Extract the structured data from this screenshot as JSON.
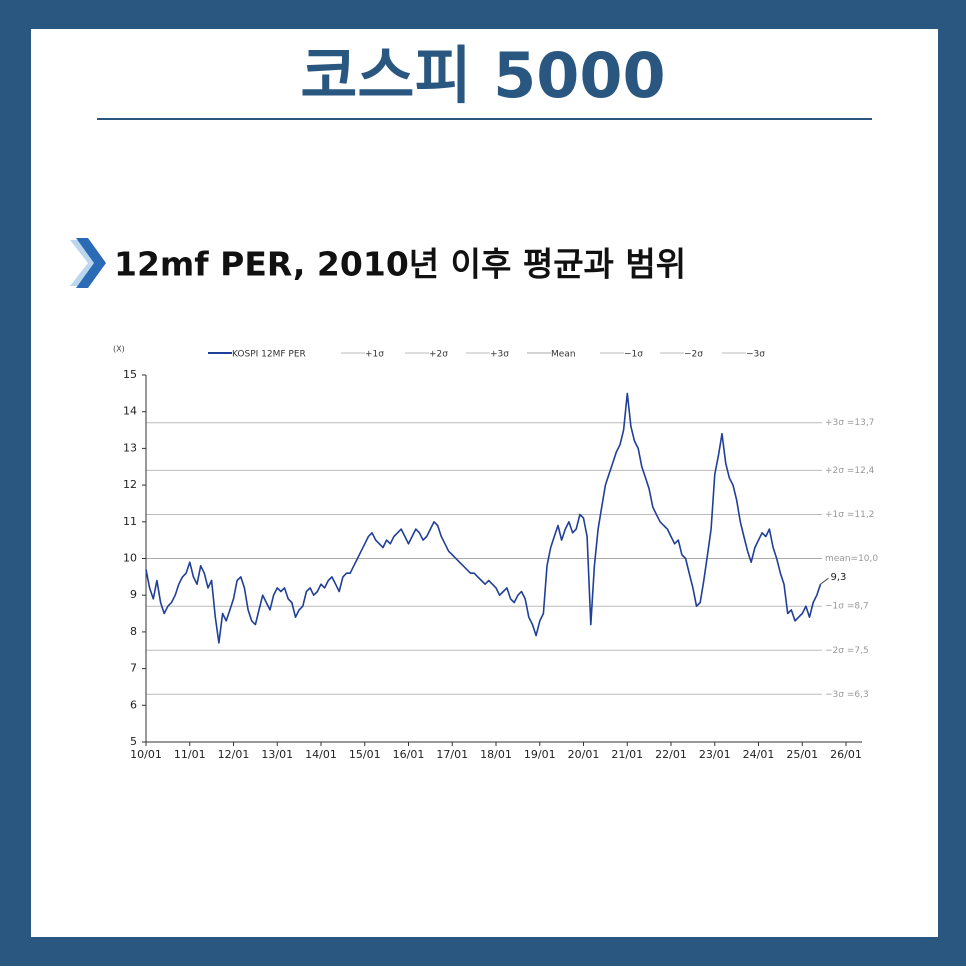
{
  "page_title": "코스피 5000",
  "chart_data": {
    "type": "line",
    "title": "12mf PER, 2010년 이후 평균과 범위",
    "y_label": "(X)",
    "x": [
      "2010-01",
      "2010-02",
      "2010-03",
      "2010-04",
      "2010-05",
      "2010-06",
      "2010-07",
      "2010-08",
      "2010-09",
      "2010-10",
      "2010-11",
      "2010-12",
      "2011-01",
      "2011-02",
      "2011-03",
      "2011-04",
      "2011-05",
      "2011-06",
      "2011-07",
      "2011-08",
      "2011-09",
      "2011-10",
      "2011-11",
      "2011-12",
      "2012-01",
      "2012-02",
      "2012-03",
      "2012-04",
      "2012-05",
      "2012-06",
      "2012-07",
      "2012-08",
      "2012-09",
      "2012-10",
      "2012-11",
      "2012-12",
      "2013-01",
      "2013-02",
      "2013-03",
      "2013-04",
      "2013-05",
      "2013-06",
      "2013-07",
      "2013-08",
      "2013-09",
      "2013-10",
      "2013-11",
      "2013-12",
      "2014-01",
      "2014-02",
      "2014-03",
      "2014-04",
      "2014-05",
      "2014-06",
      "2014-07",
      "2014-08",
      "2014-09",
      "2014-10",
      "2014-11",
      "2014-12",
      "2015-01",
      "2015-02",
      "2015-03",
      "2015-04",
      "2015-05",
      "2015-06",
      "2015-07",
      "2015-08",
      "2015-09",
      "2015-10",
      "2015-11",
      "2015-12",
      "2016-01",
      "2016-02",
      "2016-03",
      "2016-04",
      "2016-05",
      "2016-06",
      "2016-07",
      "2016-08",
      "2016-09",
      "2016-10",
      "2016-11",
      "2016-12",
      "2017-01",
      "2017-02",
      "2017-03",
      "2017-04",
      "2017-05",
      "2017-06",
      "2017-07",
      "2017-08",
      "2017-09",
      "2017-10",
      "2017-11",
      "2017-12",
      "2018-01",
      "2018-02",
      "2018-03",
      "2018-04",
      "2018-05",
      "2018-06",
      "2018-07",
      "2018-08",
      "2018-09",
      "2018-10",
      "2018-11",
      "2018-12",
      "2019-01",
      "2019-02",
      "2019-03",
      "2019-04",
      "2019-05",
      "2019-06",
      "2019-07",
      "2019-08",
      "2019-09",
      "2019-10",
      "2019-11",
      "2019-12",
      "2020-01",
      "2020-02",
      "2020-03",
      "2020-04",
      "2020-05",
      "2020-06",
      "2020-07",
      "2020-08",
      "2020-09",
      "2020-10",
      "2020-11",
      "2020-12",
      "2021-01",
      "2021-02",
      "2021-03",
      "2021-04",
      "2021-05",
      "2021-06",
      "2021-07",
      "2021-08",
      "2021-09",
      "2021-10",
      "2021-11",
      "2021-12",
      "2022-01",
      "2022-02",
      "2022-03",
      "2022-04",
      "2022-05",
      "2022-06",
      "2022-07",
      "2022-08",
      "2022-09",
      "2022-10",
      "2022-11",
      "2022-12",
      "2023-01",
      "2023-02",
      "2023-03",
      "2023-04",
      "2023-05",
      "2023-06",
      "2023-07",
      "2023-08",
      "2023-09",
      "2023-10",
      "2023-11",
      "2023-12",
      "2024-01",
      "2024-02",
      "2024-03",
      "2024-04",
      "2024-05",
      "2024-06",
      "2024-07",
      "2024-08",
      "2024-09",
      "2024-10",
      "2024-11",
      "2024-12",
      "2025-01",
      "2025-02",
      "2025-03",
      "2025-04",
      "2025-05",
      "2025-06"
    ],
    "series": [
      {
        "name": "KOSPI 12MF PER",
        "color": "#1f3f99",
        "values": [
          9.7,
          9.2,
          8.9,
          9.4,
          8.8,
          8.5,
          8.7,
          8.8,
          9.0,
          9.3,
          9.5,
          9.6,
          9.9,
          9.5,
          9.3,
          9.8,
          9.6,
          9.2,
          9.4,
          8.4,
          7.7,
          8.5,
          8.3,
          8.6,
          8.9,
          9.4,
          9.5,
          9.2,
          8.6,
          8.3,
          8.2,
          8.6,
          9.0,
          8.8,
          8.6,
          9.0,
          9.2,
          9.1,
          9.2,
          8.9,
          8.8,
          8.4,
          8.6,
          8.7,
          9.1,
          9.2,
          9.0,
          9.1,
          9.3,
          9.2,
          9.4,
          9.5,
          9.3,
          9.1,
          9.5,
          9.6,
          9.6,
          9.8,
          10.0,
          10.2,
          10.4,
          10.6,
          10.7,
          10.5,
          10.4,
          10.3,
          10.5,
          10.4,
          10.6,
          10.7,
          10.8,
          10.6,
          10.4,
          10.6,
          10.8,
          10.7,
          10.5,
          10.6,
          10.8,
          11.0,
          10.9,
          10.6,
          10.4,
          10.2,
          10.1,
          10.0,
          9.9,
          9.8,
          9.7,
          9.6,
          9.6,
          9.5,
          9.4,
          9.3,
          9.4,
          9.3,
          9.2,
          9.0,
          9.1,
          9.2,
          8.9,
          8.8,
          9.0,
          9.1,
          8.9,
          8.4,
          8.2,
          7.9,
          8.3,
          8.5,
          9.8,
          10.3,
          10.6,
          10.9,
          10.5,
          10.8,
          11.0,
          10.7,
          10.8,
          11.2,
          11.1,
          10.6,
          8.2,
          9.8,
          10.8,
          11.4,
          12.0,
          12.3,
          12.6,
          12.9,
          13.1,
          13.5,
          14.5,
          13.6,
          13.2,
          13.0,
          12.5,
          12.2,
          11.9,
          11.4,
          11.2,
          11.0,
          10.9,
          10.8,
          10.6,
          10.4,
          10.5,
          10.1,
          10.0,
          9.6,
          9.2,
          8.7,
          8.8,
          9.4,
          10.1,
          10.8,
          12.3,
          12.8,
          13.4,
          12.6,
          12.2,
          12.0,
          11.6,
          11.0,
          10.6,
          10.2,
          9.9,
          10.3,
          10.5,
          10.7,
          10.6,
          10.8,
          10.3,
          10.0,
          9.6,
          9.3,
          8.5,
          8.6,
          8.3,
          8.4,
          8.5,
          8.7,
          8.4,
          8.8,
          9.0,
          9.3
        ]
      }
    ],
    "reference_lines": [
      {
        "name": "+1σ",
        "value": 11.2,
        "label": "+1σ =11,2",
        "color": "#bbbbbb"
      },
      {
        "name": "+2σ",
        "value": 12.4,
        "label": "+2σ =12,4",
        "color": "#bbbbbb"
      },
      {
        "name": "+3σ",
        "value": 13.7,
        "label": "+3σ =13,7",
        "color": "#bbbbbb"
      },
      {
        "name": "Mean",
        "value": 10.0,
        "label": "mean=10,0",
        "color": "#aaaaaa"
      },
      {
        "name": "−1σ",
        "value": 8.7,
        "label": "−1σ =8,7",
        "color": "#bbbbbb"
      },
      {
        "name": "−2σ",
        "value": 7.5,
        "label": "−2σ =7,5",
        "color": "#bbbbbb"
      },
      {
        "name": "−3σ",
        "value": 6.3,
        "label": "−3σ =6,3",
        "color": "#bbbbbb"
      }
    ],
    "annotations": [
      {
        "x": "2025-06",
        "value": 9.3,
        "label": "9,3"
      }
    ],
    "xlim": [
      "2010-01",
      "2026-01"
    ],
    "xticks": [
      {
        "value": "2010-01",
        "label": "10/01"
      },
      {
        "value": "2011-01",
        "label": "11/01"
      },
      {
        "value": "2012-01",
        "label": "12/01"
      },
      {
        "value": "2013-01",
        "label": "13/01"
      },
      {
        "value": "2014-01",
        "label": "14/01"
      },
      {
        "value": "2015-01",
        "label": "15/01"
      },
      {
        "value": "2016-01",
        "label": "16/01"
      },
      {
        "value": "2017-01",
        "label": "17/01"
      },
      {
        "value": "2018-01",
        "label": "18/01"
      },
      {
        "value": "2019-01",
        "label": "19/01"
      },
      {
        "value": "2020-01",
        "label": "20/01"
      },
      {
        "value": "2021-01",
        "label": "21/01"
      },
      {
        "value": "2022-01",
        "label": "22/01"
      },
      {
        "value": "2023-01",
        "label": "23/01"
      },
      {
        "value": "2024-01",
        "label": "24/01"
      },
      {
        "value": "2025-01",
        "label": "25/01"
      },
      {
        "value": "2026-01",
        "label": "26/01"
      }
    ],
    "ylim": [
      5,
      15
    ],
    "yticks": [
      5,
      6,
      7,
      8,
      9,
      10,
      11,
      12,
      13,
      14,
      15
    ]
  }
}
